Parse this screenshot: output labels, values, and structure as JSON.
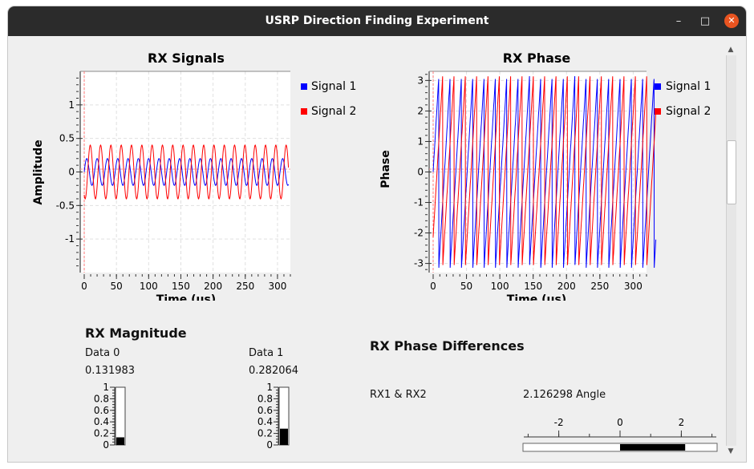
{
  "window": {
    "title": "USRP Direction Finding Experiment",
    "minimize_glyph": "–",
    "maximize_glyph": "□",
    "close_glyph": "✕"
  },
  "rx_signals": {
    "title": "RX Signals",
    "xlabel": "Time (us)",
    "ylabel": "Amplitude",
    "xticks": [
      "0",
      "50",
      "100",
      "150",
      "200",
      "250",
      "300"
    ],
    "yticks": [
      "1",
      "0.5",
      "0",
      "-0.5",
      "-1"
    ],
    "legend": [
      "Signal 1",
      "Signal 2"
    ]
  },
  "rx_phase": {
    "title": "RX Phase",
    "xlabel": "Time (us)",
    "ylabel": "Phase",
    "xticks": [
      "0",
      "50",
      "100",
      "150",
      "200",
      "250",
      "300"
    ],
    "yticks": [
      "3",
      "2",
      "1",
      "0",
      "-1",
      "-2",
      "-3"
    ],
    "legend": [
      "Signal 1",
      "Signal 2"
    ]
  },
  "rx_magnitude": {
    "title": "RX Magnitude",
    "bars": [
      {
        "label": "Data 0",
        "value_text": "0.131983",
        "value": 0.131983
      },
      {
        "label": "Data 1",
        "value_text": "0.282064",
        "value": 0.282064
      }
    ],
    "ticks": [
      "1",
      "0.8",
      "0.6",
      "0.4",
      "0.2",
      "0"
    ]
  },
  "rx_phase_diff": {
    "title": "RX Phase Differences",
    "pair_label": "RX1 & RX2",
    "value_text": "2.126298 Angle",
    "value": 2.126298,
    "scale_ticks": [
      "-2",
      "0",
      "2"
    ]
  },
  "colors": {
    "signal1": "#0000ff",
    "signal2": "#ff0000",
    "titlebar": "#2b2b2b",
    "close": "#e95420"
  },
  "chart_data": [
    {
      "type": "line",
      "title": "RX Signals",
      "xlabel": "Time (us)",
      "ylabel": "Amplitude",
      "xlim": [
        0,
        320
      ],
      "ylim": [
        -1.5,
        1.5
      ],
      "grid": true,
      "legend": "right",
      "series": [
        {
          "name": "Signal 1",
          "color": "#0000ff",
          "amplitude": 0.2,
          "frequency_mhz": 0.0625,
          "phase_rad": 0
        },
        {
          "name": "Signal 2",
          "color": "#ff0000",
          "amplitude": 0.4,
          "frequency_mhz": 0.0625,
          "phase_rad": -2.13
        }
      ]
    },
    {
      "type": "line",
      "title": "RX Phase",
      "xlabel": "Time (us)",
      "ylabel": "Phase",
      "xlim": [
        0,
        320
      ],
      "ylim": [
        -3.3,
        3.3
      ],
      "grid": true,
      "legend": "right",
      "series": [
        {
          "name": "Signal 1",
          "color": "#0000ff",
          "wrap_period_us": 17,
          "start_phase": 0
        },
        {
          "name": "Signal 2",
          "color": "#ff0000",
          "wrap_period_us": 17,
          "start_phase": -2.13
        }
      ]
    }
  ]
}
